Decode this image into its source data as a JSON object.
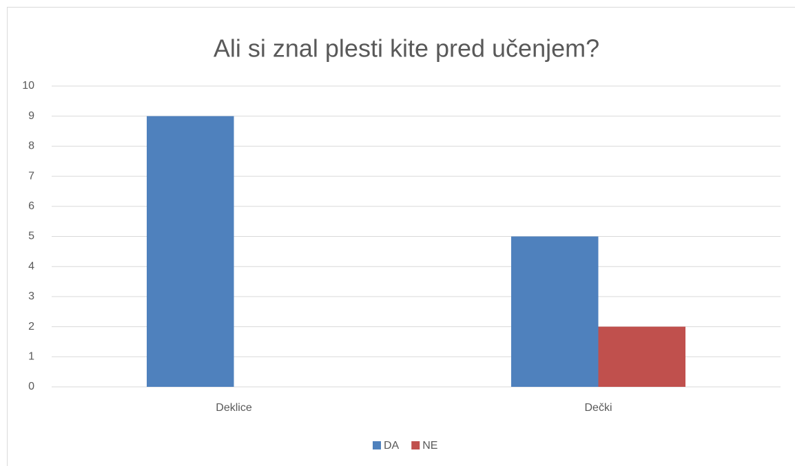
{
  "chart_data": {
    "type": "bar",
    "title": "Ali si znal plesti kite pred učenjem?",
    "categories": [
      "Deklice",
      "Dečki"
    ],
    "series": [
      {
        "name": "DA",
        "color": "#4f81bd",
        "values": [
          9,
          5
        ]
      },
      {
        "name": "NE",
        "color": "#c0504d",
        "values": [
          0,
          2
        ]
      }
    ],
    "ylim": [
      0,
      10
    ],
    "yticks": [
      0,
      1,
      2,
      3,
      4,
      5,
      6,
      7,
      8,
      9,
      10
    ],
    "grid": true,
    "legend": "bottom"
  }
}
